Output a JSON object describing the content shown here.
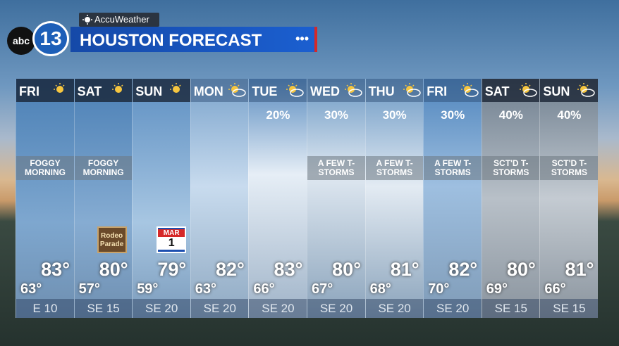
{
  "header": {
    "brand": "AccuWeather",
    "network": "abc",
    "channel": "13",
    "title": "HOUSTON FORECAST",
    "menu": "•••"
  },
  "days": [
    {
      "day": "FRI",
      "description": "FOGGY MORNING",
      "high": "83°",
      "low": "63°",
      "wind": "E 10"
    },
    {
      "day": "SAT",
      "description": "FOGGY MORNING",
      "badge": [
        "Rodeo",
        "Parade"
      ],
      "high": "80°",
      "low": "57°",
      "wind": "SE 15"
    },
    {
      "day": "SUN",
      "badge": [
        "MAR",
        "1"
      ],
      "high": "79°",
      "low": "59°",
      "wind": "SE 20"
    },
    {
      "day": "MON",
      "high": "82°",
      "low": "63°",
      "wind": "SE 20"
    },
    {
      "day": "TUE",
      "chance": "20%",
      "high": "83°",
      "low": "66°",
      "wind": "SE 20"
    },
    {
      "day": "WED",
      "chance": "30%",
      "description": "A FEW T-STORMS",
      "high": "80°",
      "low": "67°",
      "wind": "SE 20"
    },
    {
      "day": "THU",
      "chance": "30%",
      "description": "A FEW T-STORMS",
      "high": "81°",
      "low": "68°",
      "wind": "SE 20"
    },
    {
      "day": "FRI",
      "chance": "30%",
      "description": "A FEW T-STORMS",
      "high": "82°",
      "low": "70°",
      "wind": "SE 20"
    },
    {
      "day": "SAT",
      "chance": "40%",
      "description": "SCT'D T-STORMS",
      "high": "80°",
      "low": "69°",
      "wind": "SE 15"
    },
    {
      "day": "SUN",
      "chance": "40%",
      "description": "SCT'D T-STORMS",
      "high": "81°",
      "low": "66°",
      "wind": "SE 15"
    }
  ]
}
